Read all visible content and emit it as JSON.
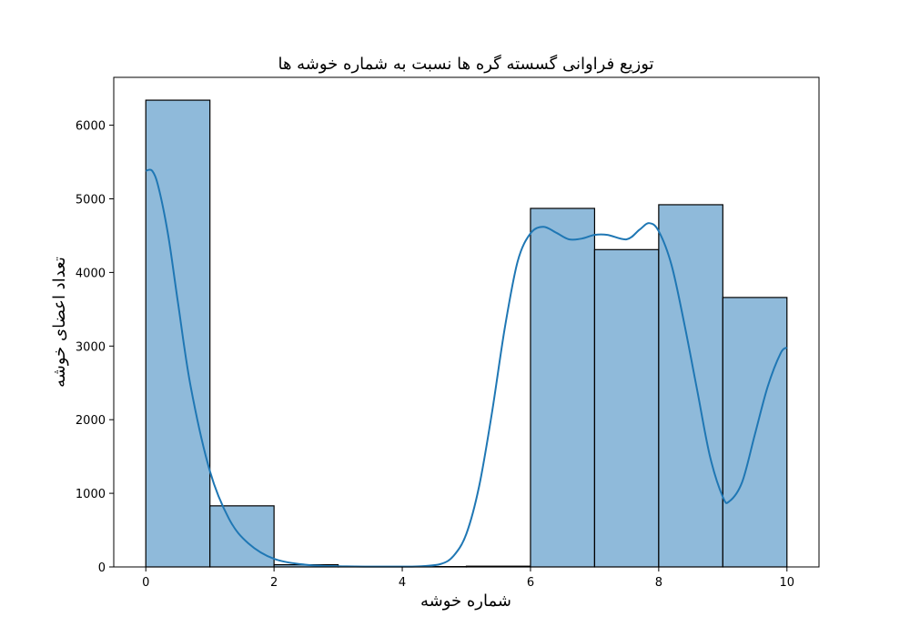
{
  "chart_data": {
    "type": "bar",
    "subtype": "histogram-with-kde",
    "title": "توزیع فراوانی گسسته گره ها نسبت به شماره خوشه ها",
    "xlabel": "شماره خوشه",
    "ylabel": "تعداد اعضای خوشه",
    "xlim": [
      -0.5,
      10.5
    ],
    "ylim": [
      0,
      6650
    ],
    "x_ticks": [
      0,
      2,
      4,
      6,
      8,
      10
    ],
    "y_ticks": [
      0,
      1000,
      2000,
      3000,
      4000,
      5000,
      6000
    ],
    "grid": false,
    "bar_color": "#8fbada",
    "bar_edge_color": "#000000",
    "kde_color": "#1f77b4",
    "bins": [
      {
        "x0": 0,
        "x1": 1,
        "value": 6340
      },
      {
        "x0": 1,
        "x1": 2,
        "value": 830
      },
      {
        "x0": 2,
        "x1": 3,
        "value": 30
      },
      {
        "x0": 3,
        "x1": 4,
        "value": 5
      },
      {
        "x0": 4,
        "x1": 5,
        "value": 5
      },
      {
        "x0": 5,
        "x1": 6,
        "value": 10
      },
      {
        "x0": 6,
        "x1": 7,
        "value": 4870
      },
      {
        "x0": 7,
        "x1": 8,
        "value": 4310
      },
      {
        "x0": 8,
        "x1": 9,
        "value": 4920
      },
      {
        "x0": 9,
        "x1": 10,
        "value": 3660
      }
    ],
    "kde_points": [
      [
        0.0,
        5380
      ],
      [
        0.1,
        5380
      ],
      [
        0.2,
        5150
      ],
      [
        0.35,
        4500
      ],
      [
        0.5,
        3600
      ],
      [
        0.7,
        2450
      ],
      [
        1.0,
        1300
      ],
      [
        1.3,
        650
      ],
      [
        1.6,
        320
      ],
      [
        2.0,
        110
      ],
      [
        2.5,
        30
      ],
      [
        3.0,
        10
      ],
      [
        3.5,
        5
      ],
      [
        4.0,
        5
      ],
      [
        4.3,
        10
      ],
      [
        4.6,
        40
      ],
      [
        4.8,
        150
      ],
      [
        5.0,
        450
      ],
      [
        5.2,
        1100
      ],
      [
        5.4,
        2100
      ],
      [
        5.6,
        3250
      ],
      [
        5.8,
        4150
      ],
      [
        6.0,
        4530
      ],
      [
        6.2,
        4620
      ],
      [
        6.4,
        4540
      ],
      [
        6.6,
        4450
      ],
      [
        6.8,
        4460
      ],
      [
        7.0,
        4510
      ],
      [
        7.2,
        4510
      ],
      [
        7.5,
        4450
      ],
      [
        7.7,
        4580
      ],
      [
        7.85,
        4670
      ],
      [
        8.0,
        4560
      ],
      [
        8.2,
        4100
      ],
      [
        8.4,
        3300
      ],
      [
        8.6,
        2400
      ],
      [
        8.8,
        1500
      ],
      [
        9.0,
        950
      ],
      [
        9.1,
        890
      ],
      [
        9.3,
        1150
      ],
      [
        9.5,
        1800
      ],
      [
        9.7,
        2450
      ],
      [
        9.9,
        2900
      ],
      [
        10.0,
        2980
      ]
    ]
  }
}
